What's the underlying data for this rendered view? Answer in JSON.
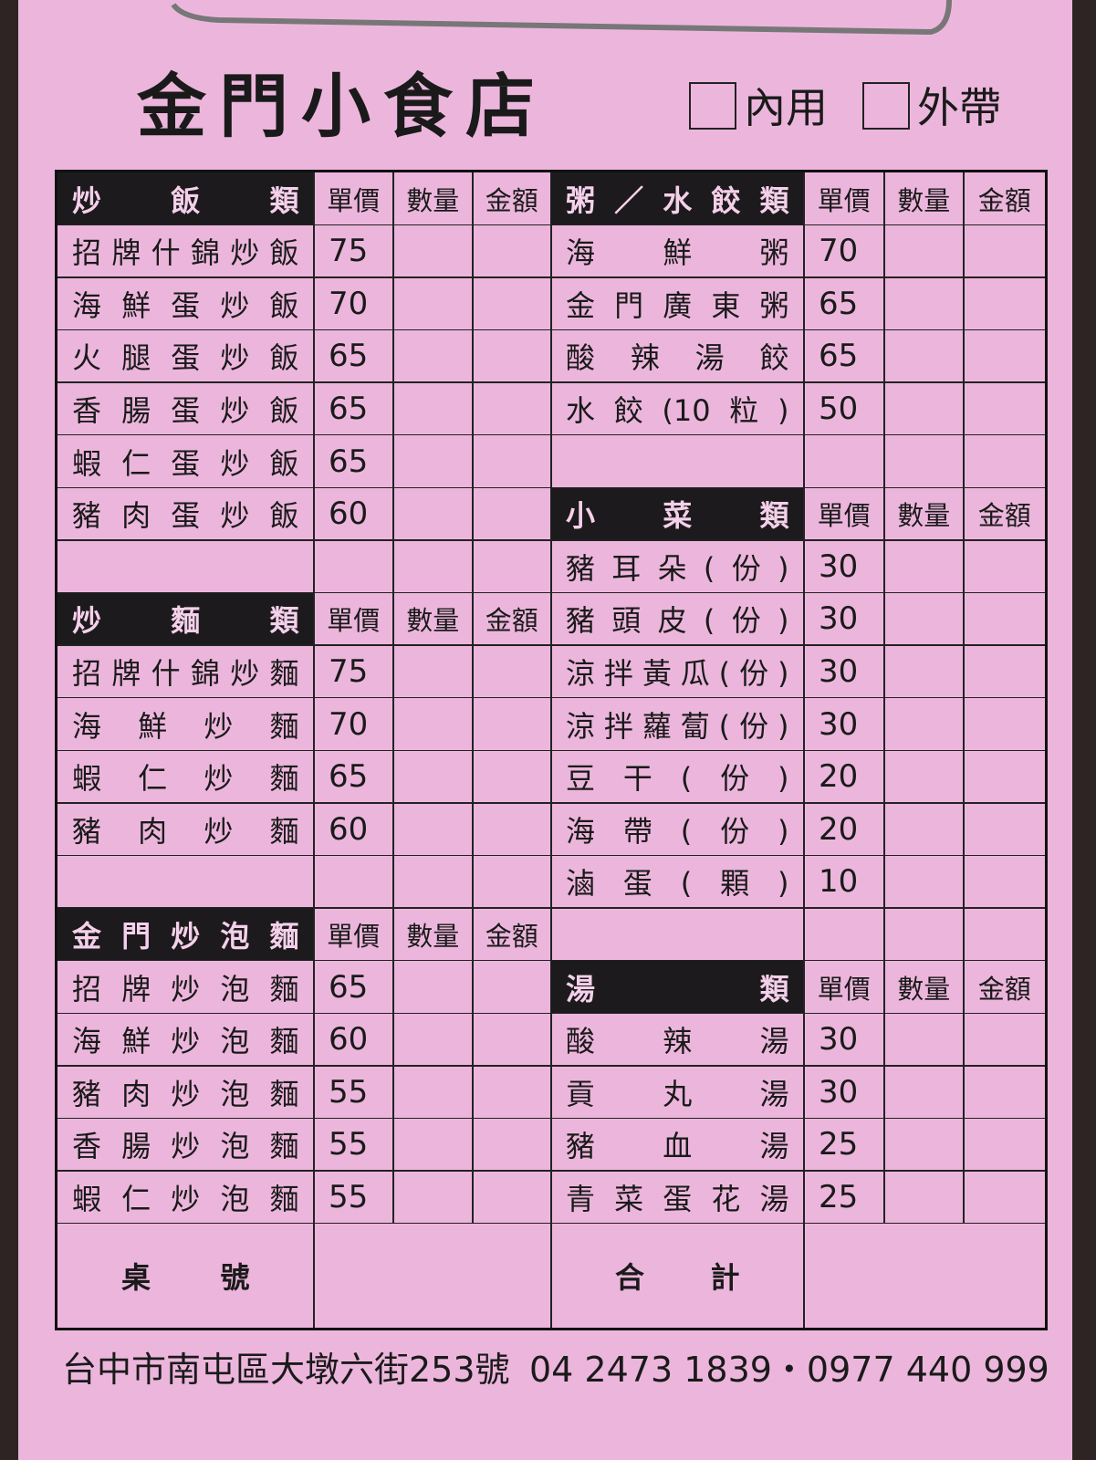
{
  "header": {
    "title": "金門小食店",
    "options": [
      "內用",
      "外帶"
    ]
  },
  "table": {
    "column_headers": [
      "單價",
      "數量",
      "金額"
    ],
    "left": [
      {
        "title": "炒飯類",
        "items": [
          {
            "name": "招牌什錦炒飯",
            "price": 75
          },
          {
            "name": "海鮮蛋炒飯",
            "price": 70
          },
          {
            "name": "火腿蛋炒飯",
            "price": 65
          },
          {
            "name": "香腸蛋炒飯",
            "price": 65
          },
          {
            "name": "蝦仁蛋炒飯",
            "price": 65
          },
          {
            "name": "豬肉蛋炒飯",
            "price": 60
          }
        ]
      },
      {
        "title": "炒麵類",
        "items": [
          {
            "name": "招牌什錦炒麵",
            "price": 75
          },
          {
            "name": "海鮮炒麵",
            "price": 70
          },
          {
            "name": "蝦仁炒麵",
            "price": 65
          },
          {
            "name": "豬肉炒麵",
            "price": 60
          }
        ]
      },
      {
        "title": "金門炒泡麵",
        "items": [
          {
            "name": "招牌炒泡麵",
            "price": 65
          },
          {
            "name": "海鮮炒泡麵",
            "price": 60
          },
          {
            "name": "豬肉炒泡麵",
            "price": 55
          },
          {
            "name": "香腸炒泡麵",
            "price": 55
          },
          {
            "name": "蝦仁炒泡麵",
            "price": 55
          }
        ]
      }
    ],
    "right": [
      {
        "title": "粥／水餃類",
        "items": [
          {
            "name": "海鮮粥",
            "price": 70
          },
          {
            "name": "金門廣東粥",
            "price": 65
          },
          {
            "name": "酸辣湯餃",
            "price": 65
          },
          {
            "name": "水餃(10粒)",
            "price": 50
          }
        ]
      },
      {
        "title": "小菜類",
        "items": [
          {
            "name": "豬耳朵(份)",
            "price": 30
          },
          {
            "name": "豬頭皮(份)",
            "price": 30
          },
          {
            "name": "涼拌黃瓜(份)",
            "price": 30
          },
          {
            "name": "涼拌蘿蔔(份)",
            "price": 30
          },
          {
            "name": "豆干(份)",
            "price": 20
          },
          {
            "name": "海帶(份)",
            "price": 20
          },
          {
            "name": "滷蛋(顆)",
            "price": 10
          }
        ]
      },
      {
        "title": "湯類",
        "items": [
          {
            "name": "酸辣湯",
            "price": 30
          },
          {
            "name": "貢丸湯",
            "price": 30
          },
          {
            "name": "豬血湯",
            "price": 25
          },
          {
            "name": "青菜蛋花湯",
            "price": 25
          }
        ]
      }
    ],
    "table_number": "桌號",
    "total": "合計"
  },
  "footer": {
    "address": "台中市南屯區大墩六街253號",
    "phone": "04 2473 1839・0977 440 999"
  }
}
